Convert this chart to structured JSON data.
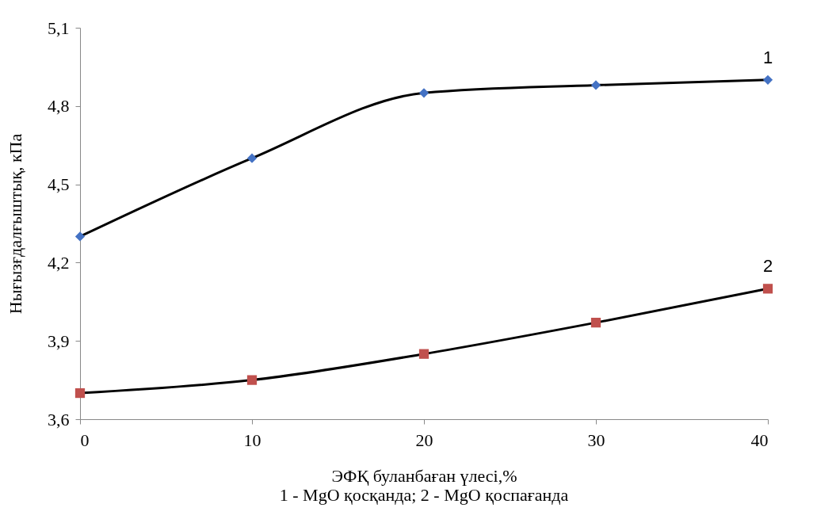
{
  "chart_data": {
    "type": "line",
    "xlabel": "ЭФҚ буланбаған үлесі,%",
    "ylabel": "Нығызғдалғыштық, кПа",
    "annotations": [
      "1 - MgO қосқанда; 2 - MgO қоспағанда"
    ],
    "x": [
      0,
      10,
      20,
      30,
      40
    ],
    "series": [
      {
        "name": "1",
        "color": "#4472c4",
        "marker": "diamond",
        "values": [
          4.3,
          4.6,
          4.85,
          4.88,
          4.9
        ]
      },
      {
        "name": "2",
        "color": "#c0504d",
        "marker": "square",
        "values": [
          3.7,
          3.75,
          3.85,
          3.97,
          4.1
        ]
      }
    ],
    "xlim": [
      0,
      40
    ],
    "xticks": [
      0,
      10,
      20,
      30,
      40
    ],
    "ylim": [
      3.6,
      5.1
    ],
    "yticks": [
      {
        "value": 3.6,
        "label": "3,6"
      },
      {
        "value": 3.9,
        "label": "3,9"
      },
      {
        "value": 4.2,
        "label": "4,2"
      },
      {
        "value": 4.5,
        "label": "4,5"
      },
      {
        "value": 4.8,
        "label": "4,8"
      },
      {
        "value": 5.1,
        "label": "5,1"
      }
    ],
    "line_style": "solid"
  }
}
